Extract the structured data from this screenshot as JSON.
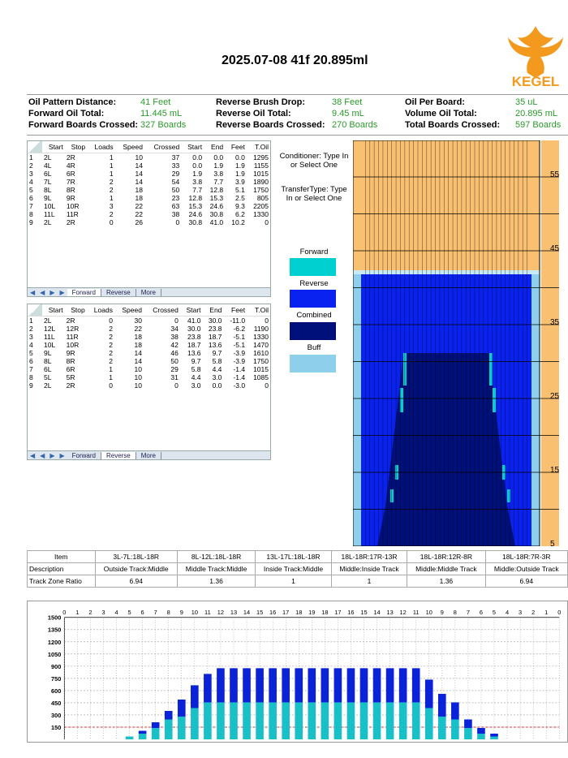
{
  "title": "2025.07-08 41f 20.895ml",
  "logo_text": "KEGEL",
  "stats": {
    "col1": [
      {
        "label": "Oil Pattern Distance:",
        "value": "41 Feet"
      },
      {
        "label": "Forward Oil Total:",
        "value": "11.445 mL"
      },
      {
        "label": "Forward Boards Crossed:",
        "value": "327 Boards"
      }
    ],
    "col2": [
      {
        "label": "Reverse Brush Drop:",
        "value": "38 Feet"
      },
      {
        "label": "Reverse Oil Total:",
        "value": "9.45 mL"
      },
      {
        "label": "Reverse Boards Crossed:",
        "value": "270 Boards"
      }
    ],
    "col3": [
      {
        "label": "Oil Per Board:",
        "value": "35 uL"
      },
      {
        "label": "Volume Oil Total:",
        "value": "20.895 mL"
      },
      {
        "label": "Total Boards Crossed:",
        "value": "597 Boards"
      }
    ]
  },
  "grid_headers": [
    "",
    "Start",
    "Stop",
    "Loads",
    "Speed",
    "Crossed",
    "Start",
    "End",
    "Feet",
    "T.Oil"
  ],
  "forward_grid": {
    "rows": [
      [
        "1",
        "2L",
        "2R",
        "1",
        "10",
        "37",
        "0.0",
        "0.0",
        "0.0",
        "1295"
      ],
      [
        "2",
        "4L",
        "4R",
        "1",
        "14",
        "33",
        "0.0",
        "1.9",
        "1.9",
        "1155"
      ],
      [
        "3",
        "6L",
        "6R",
        "1",
        "14",
        "29",
        "1.9",
        "3.8",
        "1.9",
        "1015"
      ],
      [
        "4",
        "7L",
        "7R",
        "2",
        "14",
        "54",
        "3.8",
        "7.7",
        "3.9",
        "1890"
      ],
      [
        "5",
        "8L",
        "8R",
        "2",
        "18",
        "50",
        "7.7",
        "12.8",
        "5.1",
        "1750"
      ],
      [
        "6",
        "9L",
        "9R",
        "1",
        "18",
        "23",
        "12.8",
        "15.3",
        "2.5",
        "805"
      ],
      [
        "7",
        "10L",
        "10R",
        "3",
        "22",
        "63",
        "15.3",
        "24.6",
        "9.3",
        "2205"
      ],
      [
        "8",
        "11L",
        "11R",
        "2",
        "22",
        "38",
        "24.6",
        "30.8",
        "6.2",
        "1330"
      ],
      [
        "9",
        "2L",
        "2R",
        "0",
        "26",
        "0",
        "30.8",
        "41.0",
        "10.2",
        "0"
      ]
    ],
    "tabs": [
      "Forward",
      "Reverse",
      "More"
    ],
    "active_tab": "Forward"
  },
  "reverse_grid": {
    "rows": [
      [
        "1",
        "2L",
        "2R",
        "0",
        "30",
        "0",
        "41.0",
        "30.0",
        "-11.0",
        "0"
      ],
      [
        "2",
        "12L",
        "12R",
        "2",
        "22",
        "34",
        "30.0",
        "23.8",
        "-6.2",
        "1190"
      ],
      [
        "3",
        "11L",
        "11R",
        "2",
        "18",
        "38",
        "23.8",
        "18.7",
        "-5.1",
        "1330"
      ],
      [
        "4",
        "10L",
        "10R",
        "2",
        "18",
        "42",
        "18.7",
        "13.6",
        "-5.1",
        "1470"
      ],
      [
        "5",
        "9L",
        "9R",
        "2",
        "14",
        "46",
        "13.6",
        "9.7",
        "-3.9",
        "1610"
      ],
      [
        "6",
        "8L",
        "8R",
        "2",
        "14",
        "50",
        "9.7",
        "5.8",
        "-3.9",
        "1750"
      ],
      [
        "7",
        "6L",
        "6R",
        "1",
        "10",
        "29",
        "5.8",
        "4.4",
        "-1.4",
        "1015"
      ],
      [
        "8",
        "5L",
        "5R",
        "1",
        "10",
        "31",
        "4.4",
        "3.0",
        "-1.4",
        "1085"
      ],
      [
        "9",
        "2L",
        "2R",
        "0",
        "10",
        "0",
        "3.0",
        "0.0",
        "-3.0",
        "0"
      ]
    ],
    "tabs": [
      "Forward",
      "Reverse",
      "More"
    ],
    "active_tab": "Reverse"
  },
  "legend": {
    "conditioner": "Conditioner: Type In or Select One",
    "transfer": "TransferType: Type In or Select One",
    "items": [
      {
        "label": "Forward",
        "color": "#00d0d0"
      },
      {
        "label": "Reverse",
        "color": "#0a22f0"
      },
      {
        "label": "Combined",
        "color": "#00107a"
      },
      {
        "label": "Buff",
        "color": "#8ed0ec"
      }
    ]
  },
  "oil_graph": {
    "foot_labels": [
      "55",
      "45",
      "35",
      "25",
      "15",
      "5"
    ],
    "colors": {
      "lane": "#f8c070",
      "buff": "#8ed0ec",
      "light": "#c8eaf8",
      "reverse": "#0a22f0",
      "combined": "#00107a",
      "forward": "#00d0d0"
    }
  },
  "detail_table": {
    "header": [
      "Item",
      "3L-7L:18L-18R",
      "8L-12L:18L-18R",
      "13L-17L:18L-18R",
      "18L-18R:17R-13R",
      "18L-18R:12R-8R",
      "18L-18R:7R-3R"
    ],
    "description": [
      "Description",
      "Outside Track:Middle",
      "Middle Track:Middle",
      "Inside Track:Middle",
      "Middle:Inside Track",
      "Middle:Middle Track",
      "Middle:Outside Track"
    ],
    "ratio": [
      "Track Zone Ratio",
      "6.94",
      "1.36",
      "1",
      "1",
      "1.36",
      "6.94"
    ]
  },
  "chart_data": {
    "type": "bar",
    "stacked": true,
    "categories": [
      "0",
      "1",
      "2",
      "3",
      "4",
      "5",
      "6",
      "7",
      "8",
      "9",
      "10",
      "11",
      "12",
      "13",
      "14",
      "15",
      "16",
      "17",
      "18",
      "19",
      "18",
      "17",
      "16",
      "15",
      "14",
      "13",
      "12",
      "11",
      "10",
      "9",
      "8",
      "7",
      "6",
      "5",
      "4",
      "3",
      "2",
      "1",
      "0"
    ],
    "series": [
      {
        "name": "Forward",
        "color": "#1ac0c8",
        "values": [
          0,
          0,
          0,
          0,
          0,
          35,
          70,
          140,
          245,
          280,
          385,
          455,
          455,
          455,
          455,
          455,
          455,
          455,
          455,
          455,
          455,
          455,
          455,
          455,
          455,
          455,
          455,
          455,
          385,
          280,
          245,
          140,
          70,
          35,
          0,
          0,
          0,
          0,
          0
        ]
      },
      {
        "name": "Reverse",
        "color": "#0a22d8",
        "values": [
          0,
          0,
          0,
          0,
          0,
          0,
          35,
          70,
          105,
          210,
          280,
          350,
          420,
          420,
          420,
          420,
          420,
          420,
          420,
          420,
          420,
          420,
          420,
          420,
          420,
          420,
          420,
          420,
          350,
          280,
          210,
          105,
          70,
          35,
          0,
          0,
          0,
          0,
          0
        ]
      }
    ],
    "ylim": [
      0,
      1500
    ],
    "y_ticks": [
      "1500",
      "1350",
      "1200",
      "1050",
      "900",
      "750",
      "600",
      "450",
      "300",
      "150"
    ]
  }
}
